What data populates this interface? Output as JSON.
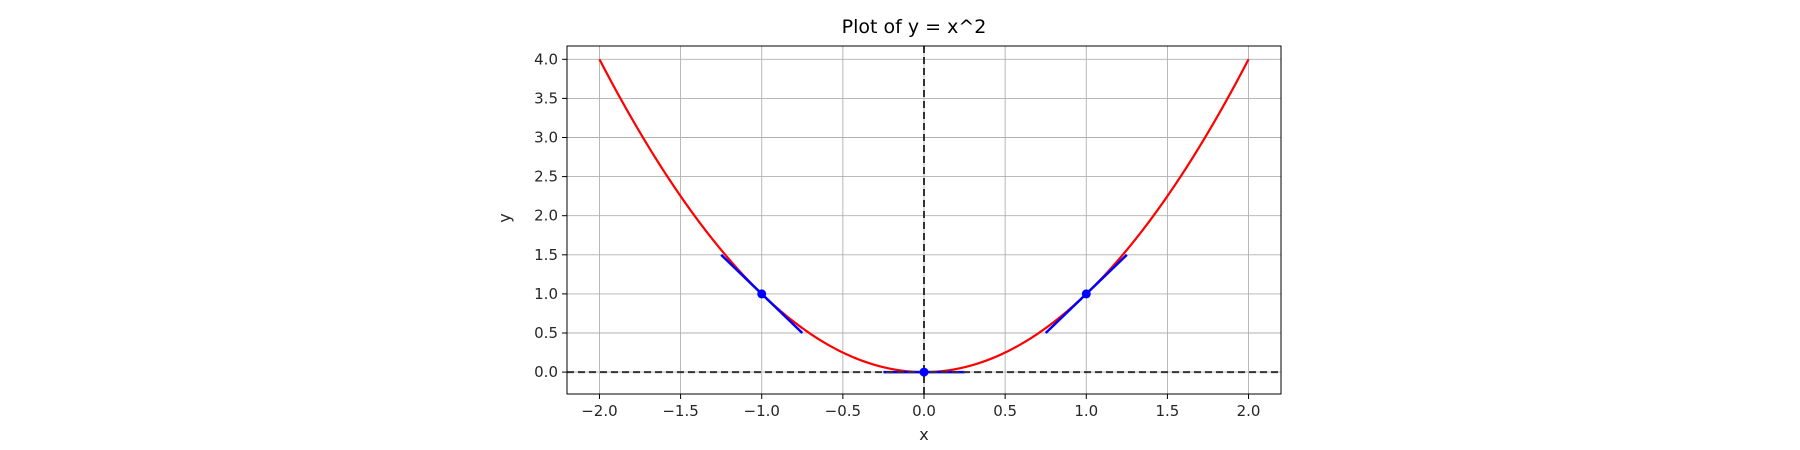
{
  "chart_data": {
    "type": "line",
    "title": "Plot of y = x^2",
    "xlabel": "x",
    "ylabel": "y",
    "xlim": [
      -2.2,
      2.2
    ],
    "ylim": [
      -0.28,
      4.17
    ],
    "xticks": [
      -2.0,
      -1.5,
      -1.0,
      -0.5,
      0.0,
      0.5,
      1.0,
      1.5,
      2.0
    ],
    "xtick_labels": [
      "−2.0",
      "−1.5",
      "−1.0",
      "−0.5",
      "0.0",
      "0.5",
      "1.0",
      "1.5",
      "2.0"
    ],
    "yticks": [
      0.0,
      0.5,
      1.0,
      1.5,
      2.0,
      2.5,
      3.0,
      3.5,
      4.0
    ],
    "ytick_labels": [
      "0.0",
      "0.5",
      "1.0",
      "1.5",
      "2.0",
      "2.5",
      "3.0",
      "3.5",
      "4.0"
    ],
    "grid": true,
    "series": [
      {
        "function": "x^2",
        "x_range": [
          -2.0,
          2.0
        ],
        "color": "#ff0000"
      }
    ],
    "points": [
      {
        "x": -1.0,
        "y": 1.0
      },
      {
        "x": 0.0,
        "y": 0.0
      },
      {
        "x": 1.0,
        "y": 1.0
      }
    ],
    "tangent_lines": [
      {
        "x0": -1.0,
        "slope": -2.0,
        "x_range": [
          -1.25,
          -0.75
        ]
      },
      {
        "x0": 0.0,
        "slope": 0.0,
        "x_range": [
          -0.25,
          0.25
        ]
      },
      {
        "x0": 1.0,
        "slope": 2.0,
        "x_range": [
          0.75,
          1.25
        ]
      }
    ],
    "tangent_color": "#0000ff",
    "reference_lines": [
      {
        "orientation": "horizontal",
        "value": 0.0
      },
      {
        "orientation": "vertical",
        "value": 0.0
      }
    ],
    "reference_color": "#333333"
  }
}
